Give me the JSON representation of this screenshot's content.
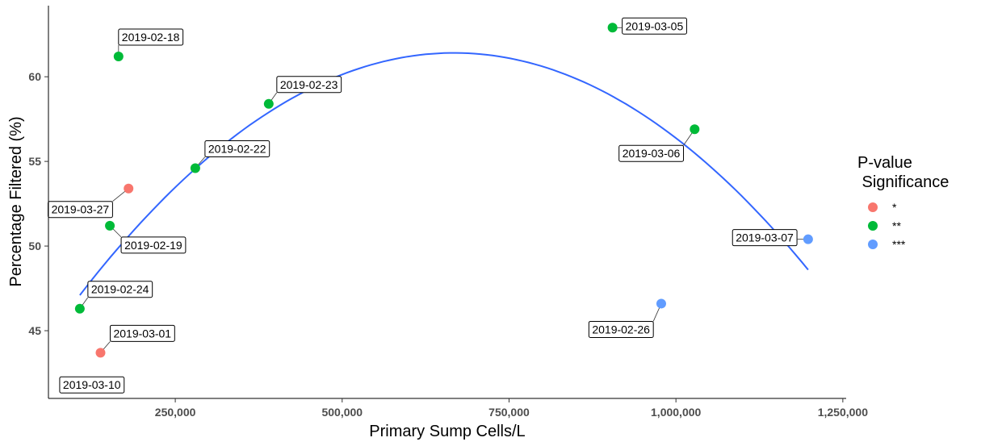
{
  "chart_data": {
    "type": "scatter",
    "xlabel": "Primary Sump Cells/L",
    "ylabel": "Percentage Filtered (%)",
    "xlim": [
      60000,
      1255000
    ],
    "ylim": [
      41,
      64.2
    ],
    "x_ticks": [
      250000,
      500000,
      750000,
      1000000,
      1250000
    ],
    "x_tick_labels": [
      "250,000",
      "500,000",
      "750,000",
      "1,000,000",
      "1,250,000"
    ],
    "y_ticks": [
      45,
      50,
      55,
      60
    ],
    "y_tick_labels": [
      "45",
      "50",
      "55",
      "60"
    ],
    "grid": false,
    "legend": {
      "title_line1": "P-value",
      "title_line2": " Significance",
      "position": "right",
      "entries": [
        {
          "label": "*",
          "color": "#F8766D"
        },
        {
          "label": "**",
          "color": "#00BA38"
        },
        {
          "label": "***",
          "color": "#619CFF"
        }
      ]
    },
    "points": [
      {
        "x": 165000,
        "y": 61.2,
        "label": "2019-02-18",
        "group": "**"
      },
      {
        "x": 152000,
        "y": 51.2,
        "label": "2019-02-19",
        "group": "**"
      },
      {
        "x": 280000,
        "y": 54.6,
        "label": "2019-02-22",
        "group": "**"
      },
      {
        "x": 390000,
        "y": 58.4,
        "label": "2019-02-23",
        "group": "**"
      },
      {
        "x": 107000,
        "y": 46.3,
        "label": "2019-02-24",
        "group": "**"
      },
      {
        "x": 978000,
        "y": 46.6,
        "label": "2019-02-26",
        "group": "***"
      },
      {
        "x": 138000,
        "y": 43.7,
        "label": "2019-03-01",
        "group": "*"
      },
      {
        "x": 905000,
        "y": 62.9,
        "label": "2019-03-05",
        "group": "**"
      },
      {
        "x": 1028000,
        "y": 56.9,
        "label": "2019-03-06",
        "group": "**"
      },
      {
        "x": 1198000,
        "y": 50.4,
        "label": "2019-03-07",
        "group": "***"
      },
      {
        "x": 180000,
        "y": 53.4,
        "label": "2019-03-27",
        "group": "*"
      }
    ],
    "unpointed_labels": [
      {
        "x": 125000,
        "y": 41.8,
        "label": "2019-03-10"
      }
    ],
    "trend": {
      "type": "quadratic",
      "color": "#3366FF",
      "x_range": [
        107000,
        1198000
      ],
      "points": [
        [
          107000,
          47.1
        ],
        [
          600000,
          61.2
        ],
        [
          1198000,
          48.6
        ]
      ]
    }
  }
}
